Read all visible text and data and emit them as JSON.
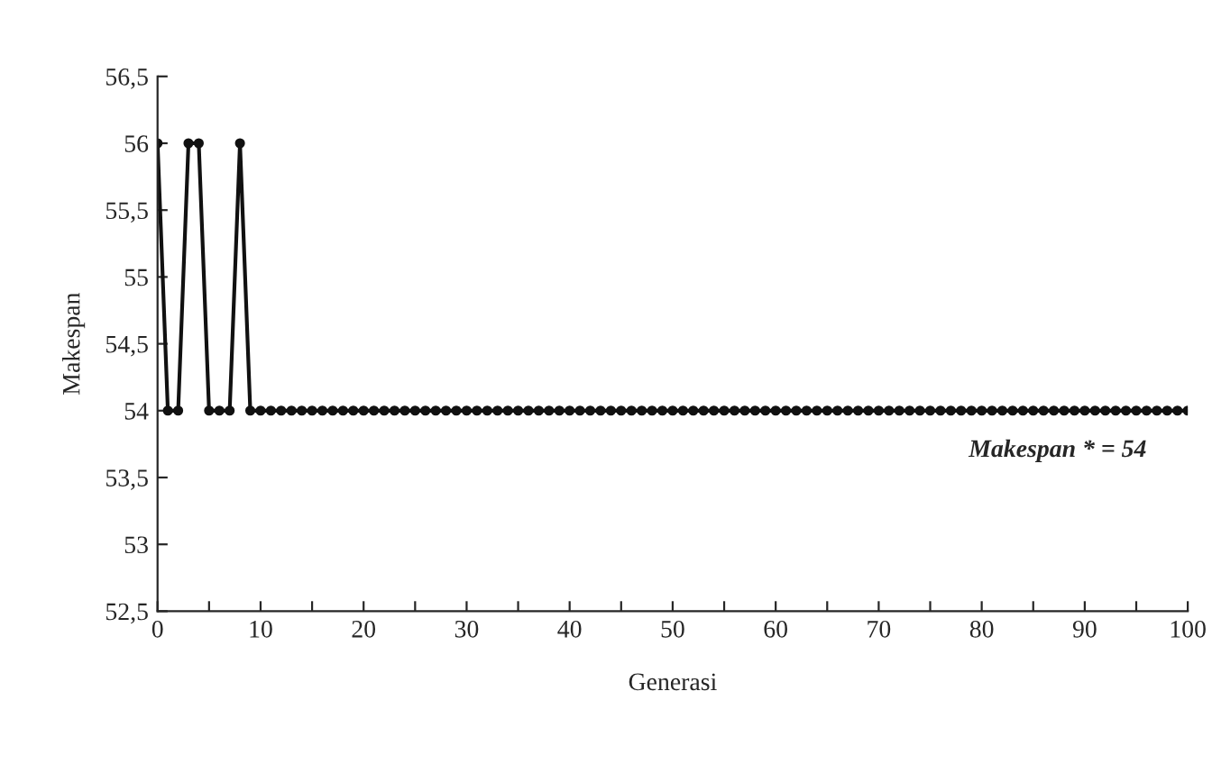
{
  "chart_data": {
    "type": "line",
    "xlabel": "Generasi",
    "ylabel": "Makespan",
    "x": [
      0,
      1,
      2,
      3,
      4,
      5,
      6,
      7,
      8,
      9,
      10,
      11,
      12,
      13,
      14,
      15,
      16,
      17,
      18,
      19,
      20,
      21,
      22,
      23,
      24,
      25,
      26,
      27,
      28,
      29,
      30,
      31,
      32,
      33,
      34,
      35,
      36,
      37,
      38,
      39,
      40,
      41,
      42,
      43,
      44,
      45,
      46,
      47,
      48,
      49,
      50,
      51,
      52,
      53,
      54,
      55,
      56,
      57,
      58,
      59,
      60,
      61,
      62,
      63,
      64,
      65,
      66,
      67,
      68,
      69,
      70,
      71,
      72,
      73,
      74,
      75,
      76,
      77,
      78,
      79,
      80,
      81,
      82,
      83,
      84,
      85,
      86,
      87,
      88,
      89,
      90,
      91,
      92,
      93,
      94,
      95,
      96,
      97,
      98,
      99,
      100
    ],
    "series": [
      {
        "color": "#111111",
        "values": [
          56,
          54,
          54,
          56,
          56,
          54,
          54,
          54,
          56,
          54,
          54,
          54,
          54,
          54,
          54,
          54,
          54,
          54,
          54,
          54,
          54,
          54,
          54,
          54,
          54,
          54,
          54,
          54,
          54,
          54,
          54,
          54,
          54,
          54,
          54,
          54,
          54,
          54,
          54,
          54,
          54,
          54,
          54,
          54,
          54,
          54,
          54,
          54,
          54,
          54,
          54,
          54,
          54,
          54,
          54,
          54,
          54,
          54,
          54,
          54,
          54,
          54,
          54,
          54,
          54,
          54,
          54,
          54,
          54,
          54,
          54,
          54,
          54,
          54,
          54,
          54,
          54,
          54,
          54,
          54,
          54,
          54,
          54,
          54,
          54,
          54,
          54,
          54,
          54,
          54,
          54,
          54,
          54,
          54,
          54,
          54,
          54,
          54,
          54,
          54,
          54
        ]
      }
    ],
    "xlim": [
      0,
      100
    ],
    "ylim": [
      52.5,
      56.5
    ],
    "xticks": [
      0,
      {
        "value": 5,
        "label": null
      },
      10,
      {
        "value": 15,
        "label": null
      },
      20,
      {
        "value": 25,
        "label": null
      },
      30,
      {
        "value": 35,
        "label": null
      },
      40,
      {
        "value": 45,
        "label": null
      },
      50,
      {
        "value": 55,
        "label": null
      },
      60,
      {
        "value": 65,
        "label": null
      },
      70,
      {
        "value": 75,
        "label": null
      },
      80,
      {
        "value": 85,
        "label": null
      },
      90,
      {
        "value": 95,
        "label": null
      },
      100
    ],
    "yticks": [
      {
        "value": 52.5,
        "label": "52,5"
      },
      {
        "value": 53,
        "label": "53"
      },
      {
        "value": 53.5,
        "label": "53,5"
      },
      {
        "value": 54,
        "label": "54"
      },
      {
        "value": 54.5,
        "label": "54,5"
      },
      {
        "value": 55,
        "label": "55"
      },
      {
        "value": 55.5,
        "label": "55,5"
      },
      {
        "value": 56,
        "label": "56"
      },
      {
        "value": 56.5,
        "label": "56,5"
      }
    ],
    "annotations": [
      "Makespan * = 54"
    ],
    "marker": "circle",
    "line_style": "solid",
    "grid": false,
    "legend": false
  }
}
